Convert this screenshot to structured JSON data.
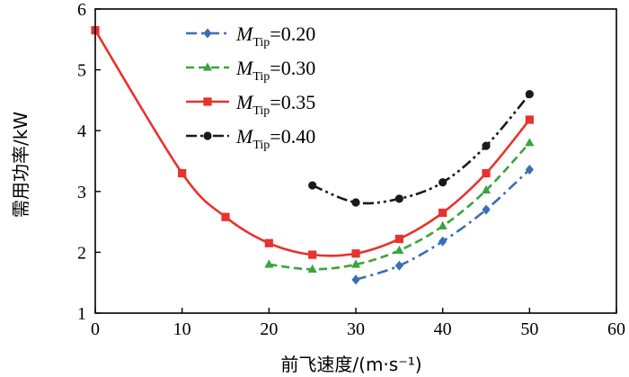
{
  "chart_data": {
    "type": "line",
    "title": "",
    "xlabel": "前飞速度/(m·s⁻¹)",
    "ylabel": "需用功率/kW",
    "xlim": [
      0,
      60
    ],
    "ylim": [
      1,
      6
    ],
    "xticks": [
      "0",
      "10",
      "20",
      "30",
      "40",
      "50",
      "60"
    ],
    "yticks": [
      "1",
      "2",
      "3",
      "4",
      "5",
      "6"
    ],
    "legend_position": "top-left",
    "series": [
      {
        "name": "M_Tip=0.20",
        "label_main": "M",
        "label_sub": "Tip",
        "label_value": "=0.20",
        "color": "#3a6fb5",
        "marker": "diamond",
        "dash": "dashdot",
        "x": [
          30,
          35,
          40,
          45,
          50
        ],
        "y": [
          1.55,
          1.78,
          2.18,
          2.7,
          3.36
        ]
      },
      {
        "name": "M_Tip=0.30",
        "label_main": "M",
        "label_sub": "Tip",
        "label_value": "=0.30",
        "color": "#3aa53a",
        "marker": "triangle",
        "dash": "dashed",
        "x": [
          20,
          25,
          30,
          35,
          40,
          45,
          50
        ],
        "y": [
          1.8,
          1.72,
          1.8,
          2.03,
          2.43,
          3.02,
          3.8
        ]
      },
      {
        "name": "M_Tip=0.35",
        "label_main": "M",
        "label_sub": "Tip",
        "label_value": "=0.35",
        "color": "#e8322d",
        "marker": "square",
        "dash": "solid",
        "x": [
          0,
          10,
          15,
          20,
          25,
          30,
          35,
          40,
          45,
          50
        ],
        "y": [
          5.65,
          3.3,
          2.58,
          2.15,
          1.96,
          1.98,
          2.22,
          2.65,
          3.3,
          4.18
        ]
      },
      {
        "name": "M_Tip=0.40",
        "label_main": "M",
        "label_sub": "Tip",
        "label_value": "=0.40",
        "color": "#1a1a1a",
        "marker": "circle",
        "dash": "dashdotdot",
        "x": [
          25,
          30,
          35,
          40,
          45,
          50
        ],
        "y": [
          3.1,
          2.82,
          2.88,
          3.15,
          3.75,
          4.6
        ]
      }
    ]
  }
}
